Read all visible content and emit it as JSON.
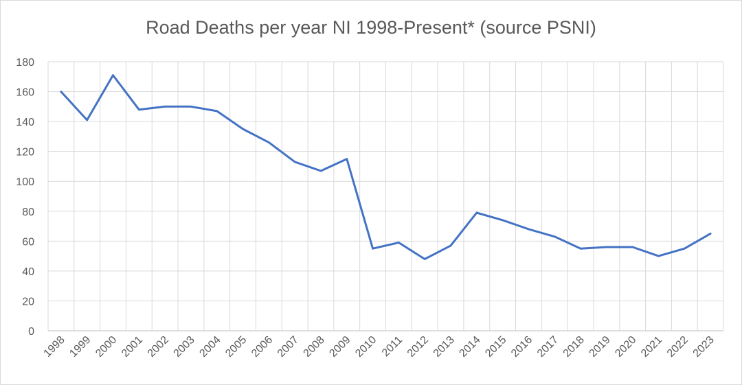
{
  "chart_data": {
    "type": "line",
    "title": "Road Deaths per year NI 1998-Present* (source PSNI)",
    "xlabel": "",
    "ylabel": "",
    "categories": [
      "1998",
      "1999",
      "2000",
      "2001",
      "2002",
      "2003",
      "2004",
      "2005",
      "2006",
      "2007",
      "2008",
      "2009",
      "2010",
      "2011",
      "2012",
      "2013",
      "2014",
      "2015",
      "2016",
      "2017",
      "2018",
      "2019",
      "2020",
      "2021",
      "2022",
      "2023"
    ],
    "series": [
      {
        "values": [
          160,
          141,
          171,
          148,
          150,
          150,
          147,
          135,
          126,
          113,
          107,
          115,
          55,
          59,
          48,
          57,
          79,
          74,
          68,
          63,
          55,
          56,
          56,
          50,
          55,
          65
        ]
      }
    ],
    "ylim": [
      0,
      180
    ],
    "yticks": [
      0,
      20,
      40,
      60,
      80,
      100,
      120,
      140,
      160,
      180
    ],
    "grid": true,
    "legend": "none",
    "colors": {
      "line": "#4472c4",
      "grid": "#d9d9d9",
      "text": "#595959"
    }
  }
}
